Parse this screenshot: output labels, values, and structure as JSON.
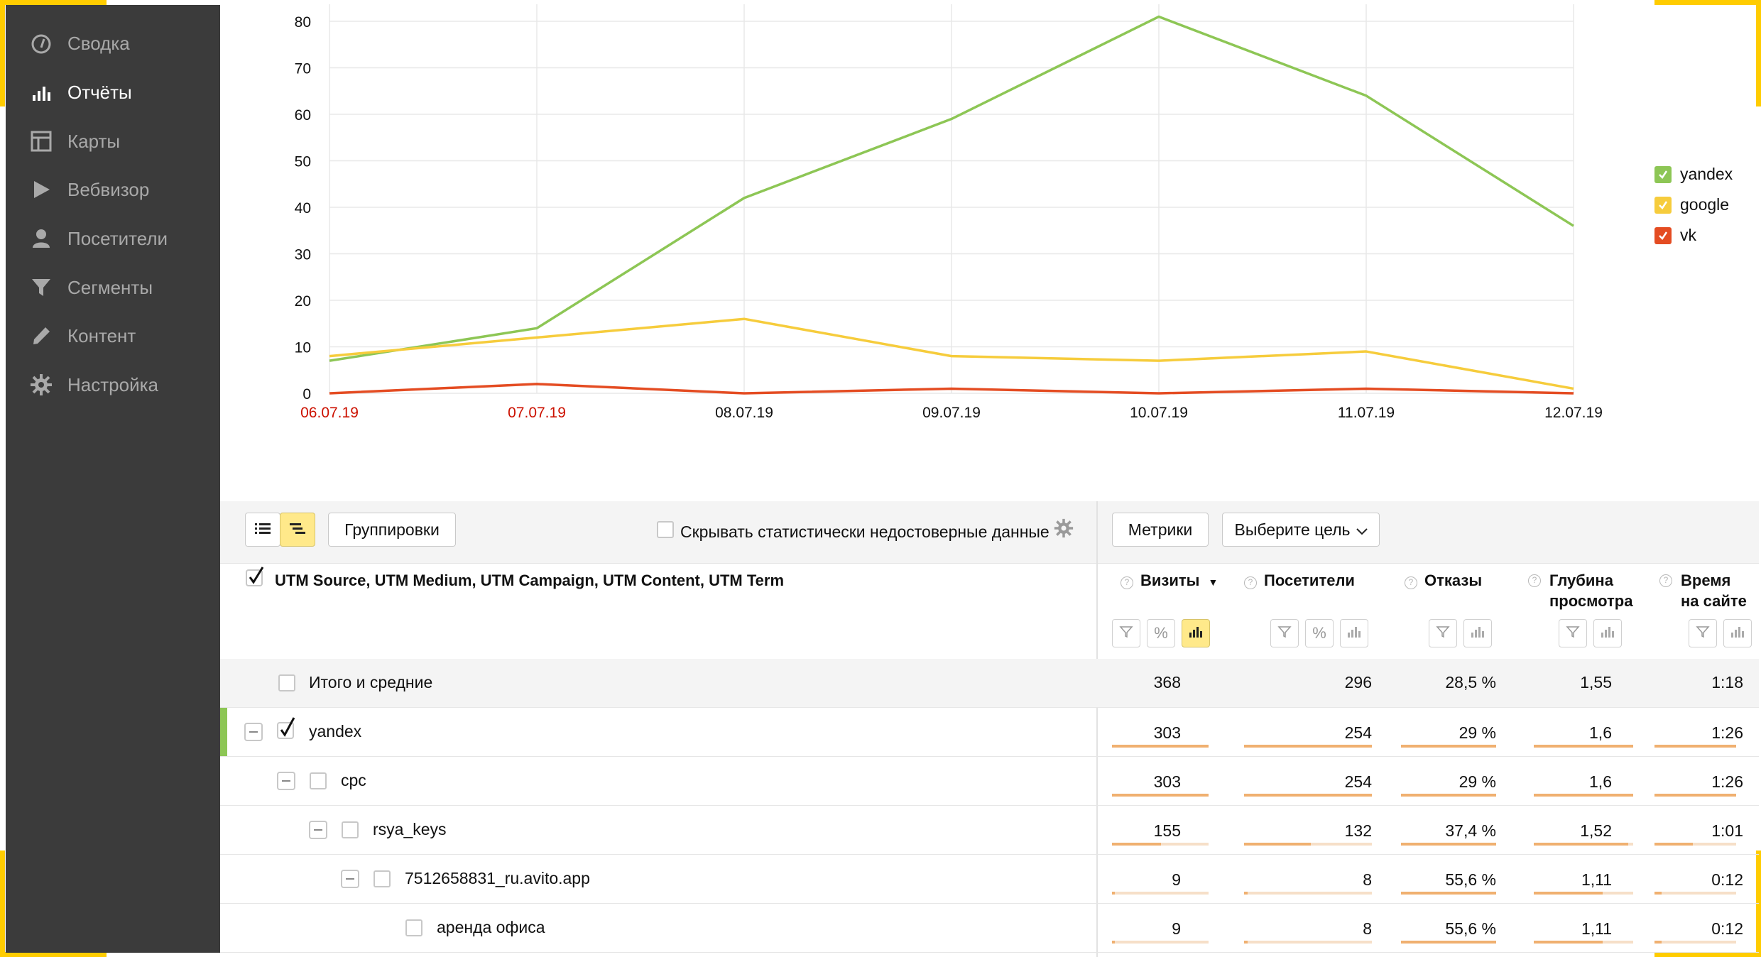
{
  "sidebar": {
    "items": [
      {
        "label": "Сводка",
        "icon": "dashboard-icon"
      },
      {
        "label": "Отчёты",
        "icon": "bar-chart-icon",
        "active": true
      },
      {
        "label": "Карты",
        "icon": "map-layout-icon"
      },
      {
        "label": "Вебвизор",
        "icon": "play-icon"
      },
      {
        "label": "Посетители",
        "icon": "user-icon"
      },
      {
        "label": "Сегменты",
        "icon": "filter-icon"
      },
      {
        "label": "Контент",
        "icon": "pencil-icon"
      },
      {
        "label": "Настройка",
        "icon": "gear-icon"
      }
    ]
  },
  "chart_data": {
    "type": "line",
    "x": [
      "06.07.19",
      "07.07.19",
      "08.07.19",
      "09.07.19",
      "10.07.19",
      "11.07.19",
      "12.07.19"
    ],
    "weekend_x": [
      "06.07.19",
      "07.07.19"
    ],
    "weekend_color": "#cc1100",
    "yticks": [
      0,
      10,
      20,
      30,
      40,
      50,
      60,
      70,
      80
    ],
    "ylim": [
      0,
      80
    ],
    "grid": true,
    "legend_position": "right",
    "series": [
      {
        "name": "yandex",
        "color": "#8dc655",
        "values": [
          7,
          14,
          42,
          59,
          81,
          64,
          36
        ]
      },
      {
        "name": "google",
        "color": "#f6cc3c",
        "values": [
          8,
          12,
          16,
          8,
          7,
          9,
          1
        ]
      },
      {
        "name": "vk",
        "color": "#e44c22",
        "values": [
          0,
          2,
          0,
          1,
          0,
          1,
          0
        ]
      }
    ]
  },
  "toolbar": {
    "groupings_label": "Группировки",
    "hide_unreliable_label": "Скрывать статистически недостоверные данные",
    "metrics_label": "Метрики",
    "goal_select_label": "Выберите цель"
  },
  "table": {
    "dimension_header": "UTM Source, UTM Medium, UTM Campaign, UTM Content, UTM Term",
    "columns": [
      {
        "label": "Визиты",
        "sort": "▼"
      },
      {
        "label": "Посетители"
      },
      {
        "label": "Отказы"
      },
      {
        "label": "Глубина просмотра"
      },
      {
        "label": "Время на сайте"
      }
    ],
    "rows": [
      {
        "label": "Итого и средние",
        "values": [
          "368",
          "296",
          "28,5 %",
          "1,55",
          "1:18"
        ]
      },
      {
        "label": "yandex",
        "values": [
          "303",
          "254",
          "29 %",
          "1,6",
          "1:26"
        ],
        "color": "#8dc655"
      },
      {
        "label": "cpc",
        "values": [
          "303",
          "254",
          "29 %",
          "1,6",
          "1:26"
        ]
      },
      {
        "label": "rsya_keys",
        "values": [
          "155",
          "132",
          "37,4 %",
          "1,52",
          "1:01"
        ]
      },
      {
        "label": "7512658831_ru.avito.app",
        "values": [
          "9",
          "8",
          "55,6 %",
          "1,11",
          "0:12"
        ]
      },
      {
        "label": "аренда офиса",
        "values": [
          "9",
          "8",
          "55,6 %",
          "1,11",
          "0:12"
        ]
      }
    ],
    "bar_fractions": [
      [
        1.0,
        1.0,
        1.0,
        1.0,
        1.0
      ],
      [
        1.0,
        1.0,
        1.0,
        1.0,
        1.0
      ],
      [
        0.51,
        0.52,
        1.0,
        0.95,
        0.47
      ],
      [
        0.03,
        0.03,
        1.0,
        0.69,
        0.09
      ],
      [
        0.03,
        0.03,
        1.0,
        0.69,
        0.09
      ]
    ]
  }
}
